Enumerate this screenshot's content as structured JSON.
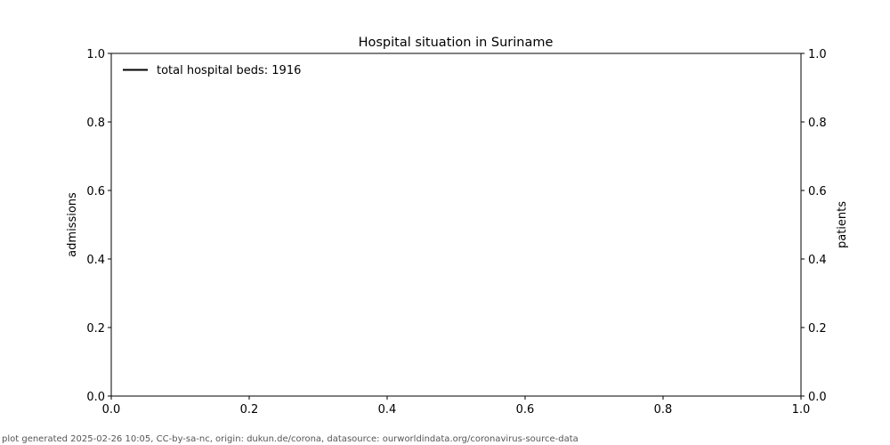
{
  "chart_data": {
    "type": "line",
    "title": "Hospital situation in Suriname",
    "xlabel": "",
    "ylabel": "admissions",
    "ylabel_right": "patients",
    "xlim": [
      0,
      1
    ],
    "ylim": [
      0,
      1
    ],
    "ylim_right": [
      0,
      1
    ],
    "x_ticks": [
      "0.0",
      "0.2",
      "0.4",
      "0.6",
      "0.8",
      "1.0"
    ],
    "y_ticks": [
      "0.0",
      "0.2",
      "0.4",
      "0.6",
      "0.8",
      "1.0"
    ],
    "y_ticks_right": [
      "0.0",
      "0.2",
      "0.4",
      "0.6",
      "0.8",
      "1.0"
    ],
    "grid": false,
    "legend_position": "top-left",
    "series": [
      {
        "name": "total hospital beds: 1916",
        "color": "#000000",
        "x": [],
        "y": []
      }
    ]
  },
  "footer": "plot generated 2025-02-26 10:05, CC-by-sa-nc, origin: dukun.de/corona, datasource: ourworldindata.org/coronavirus-source-data"
}
